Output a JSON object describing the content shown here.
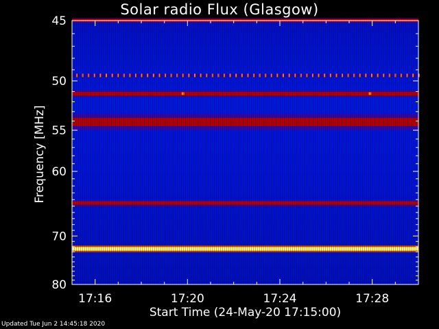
{
  "chart_data": {
    "type": "heatmap",
    "title": "Solar radio Flux (Glasgow)",
    "xlabel": "Start Time (24-May-20 17:15:00)",
    "ylabel": "Frequency [MHz]",
    "x_ticks": [
      "17:16",
      "17:20",
      "17:24",
      "17:28"
    ],
    "x_tick_minutes": [
      1,
      5,
      9,
      13
    ],
    "xlim_minutes": [
      0,
      15
    ],
    "y_ticks": [
      45,
      50,
      55,
      60,
      70,
      80
    ],
    "ylim": [
      45,
      80
    ],
    "y_scale": "reciprocal",
    "colormap": "blue-red-yellow",
    "bands": [
      {
        "freq": 45.0,
        "intensity": "red"
      },
      {
        "freq": 49.5,
        "intensity": "orange-dotted"
      },
      {
        "freq": 51.2,
        "intensity": "red"
      },
      {
        "freq": 54.1,
        "intensity": "red"
      },
      {
        "freq": 64.5,
        "intensity": "red"
      },
      {
        "freq": 72.4,
        "intensity": "yellow"
      }
    ],
    "colors": {
      "background": "#0000c8",
      "band_red": "#b40000",
      "band_yellow": "#ffff80",
      "dot_orange": "#ff8000"
    }
  },
  "footer": {
    "updated": "Updated Tue Jun  2 14:45:18 2020"
  }
}
